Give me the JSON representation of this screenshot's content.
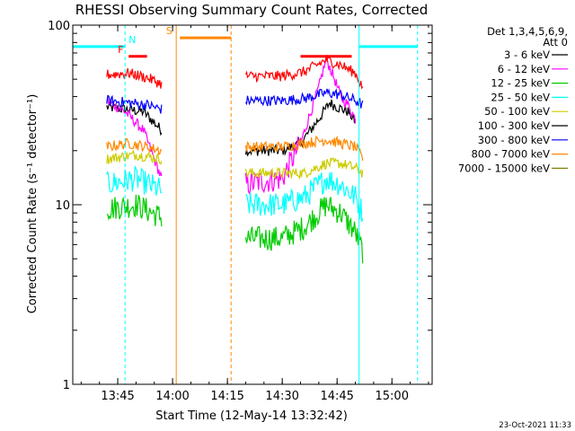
{
  "chart_data": {
    "type": "line",
    "title": "RHESSI Observing Summary Count Rates, Corrected",
    "xlabel": "Start Time (12-May-14 13:32:42)",
    "ylabel": "Corrected Count Rate (s⁻¹ detector⁻¹)",
    "y_scale": "log",
    "ylim": [
      1,
      100
    ],
    "xlim": [
      "13:32:42",
      "15:11:00"
    ],
    "x_ticks": [
      "13:45",
      "14:00",
      "14:15",
      "14:30",
      "14:45",
      "15:00"
    ],
    "y_ticks": [
      "1",
      "10",
      "100"
    ],
    "legend_header": [
      "Det 1,3,4,5,6,9,",
      "Att 0"
    ],
    "legend_position": "right",
    "footer_date": "23-Oct-2021 11:33",
    "series": [
      {
        "name": "3 - 6 keV",
        "color": "#000000",
        "x": [
          "13:42",
          "13:47",
          "13:52",
          "13:57",
          "14:01",
          "14:20",
          "14:30",
          "14:35",
          "14:40",
          "14:43",
          "14:45",
          "14:48",
          "14:50"
        ],
        "values": [
          35,
          34,
          33,
          26,
          23,
          20,
          20,
          22,
          30,
          37,
          35,
          33,
          29
        ]
      },
      {
        "name": "6 - 12 keV",
        "color": "#ff00ff",
        "x": [
          "13:42",
          "13:47",
          "13:52",
          "13:57",
          "14:01",
          "14:20",
          "14:30",
          "14:35",
          "14:40",
          "14:42",
          "14:44",
          "14:46",
          "14:48",
          "14:50"
        ],
        "values": [
          38,
          33,
          26,
          14,
          12,
          13,
          14,
          22,
          45,
          65,
          52,
          40,
          36,
          30
        ]
      },
      {
        "name": "12 - 25 keV",
        "color": "#00cc00",
        "x": [
          "13:42",
          "13:50",
          "13:57",
          "14:01",
          "14:20",
          "14:30",
          "14:36",
          "14:42",
          "14:46",
          "14:50",
          "14:52"
        ],
        "values": [
          9.5,
          10,
          8.5,
          7,
          6.5,
          6.5,
          7.5,
          10,
          9,
          7,
          5.5
        ]
      },
      {
        "name": "25 - 50 keV",
        "color": "#00ffff",
        "x": [
          "13:42",
          "13:50",
          "13:57",
          "14:01",
          "14:20",
          "14:30",
          "14:36",
          "14:42",
          "14:46",
          "14:50",
          "14:52"
        ],
        "values": [
          13,
          14,
          12,
          11,
          10,
          10,
          11,
          14,
          13,
          11,
          9
        ]
      },
      {
        "name": "50 - 100 keV",
        "color": "#cccc00",
        "x": [
          "13:42",
          "13:50",
          "13:57",
          "14:01",
          "14:20",
          "14:30",
          "14:36",
          "14:42",
          "14:46",
          "14:50",
          "14:52"
        ],
        "values": [
          18,
          19,
          18,
          16,
          15,
          15,
          15,
          17,
          17,
          16,
          15
        ]
      },
      {
        "name": "100 - 300 keV",
        "color": "#000000",
        "x": [],
        "values": []
      },
      {
        "name": "300 - 800 keV",
        "color": "#0000ff",
        "x": [
          "13:42",
          "13:48",
          "13:53",
          "13:57",
          "14:01",
          "14:20",
          "14:30",
          "14:36",
          "14:42",
          "14:46",
          "14:50",
          "14:52"
        ],
        "values": [
          38,
          37,
          36,
          34,
          33,
          38,
          38,
          39,
          42,
          41,
          38,
          36
        ]
      },
      {
        "name": "800 - 7000 keV",
        "color": "#ff8800",
        "x": [
          "13:42",
          "13:48",
          "13:53",
          "13:57",
          "14:01",
          "14:20",
          "14:30",
          "14:36",
          "14:42",
          "14:46",
          "14:50",
          "14:52"
        ],
        "values": [
          21,
          22,
          21,
          20,
          19,
          21,
          21,
          22,
          23,
          22,
          21,
          18
        ]
      },
      {
        "name": "7000 - 15000 keV",
        "color": "#808000",
        "x": [],
        "values": []
      },
      {
        "name": "",
        "color": "#ff0000",
        "x": [
          "13:42",
          "13:48",
          "13:53",
          "13:57",
          "14:01",
          "14:20",
          "14:30",
          "14:36",
          "14:42",
          "14:46",
          "14:50",
          "14:52"
        ],
        "values": [
          53,
          54,
          51,
          47,
          42,
          52,
          52,
          55,
          64,
          60,
          54,
          45
        ]
      }
    ],
    "vertical_markers": [
      {
        "time": "13:32:42",
        "color": "#00ffff",
        "style": "solid"
      },
      {
        "time": "13:47",
        "color": "#00ffff",
        "style": "dashed"
      },
      {
        "time": "14:01",
        "color": "#ff8800",
        "style": "solid"
      },
      {
        "time": "14:16",
        "color": "#ff8800",
        "style": "dashed"
      },
      {
        "time": "14:51",
        "color": "#00ffff",
        "style": "solid"
      },
      {
        "time": "15:07",
        "color": "#00ffff",
        "style": "dashed"
      }
    ],
    "flag_bars": [
      {
        "label": "N",
        "color": "#00ffff",
        "start": "13:32:42",
        "end": "13:47",
        "level": 76
      },
      {
        "label": "",
        "color": "#00ffff",
        "start": "14:51",
        "end": "15:07",
        "level": 76
      },
      {
        "label": "S",
        "color": "#ff8800",
        "start": "14:02",
        "end": "14:16",
        "level": 85
      },
      {
        "label": "F",
        "color": "#ff0000",
        "start": "13:48",
        "end": "13:53",
        "level": 67
      },
      {
        "label": "",
        "color": "#ff0000",
        "start": "14:35",
        "end": "14:49",
        "level": 67
      }
    ],
    "gaps": [
      [
        "13:58",
        "14:19"
      ]
    ]
  }
}
